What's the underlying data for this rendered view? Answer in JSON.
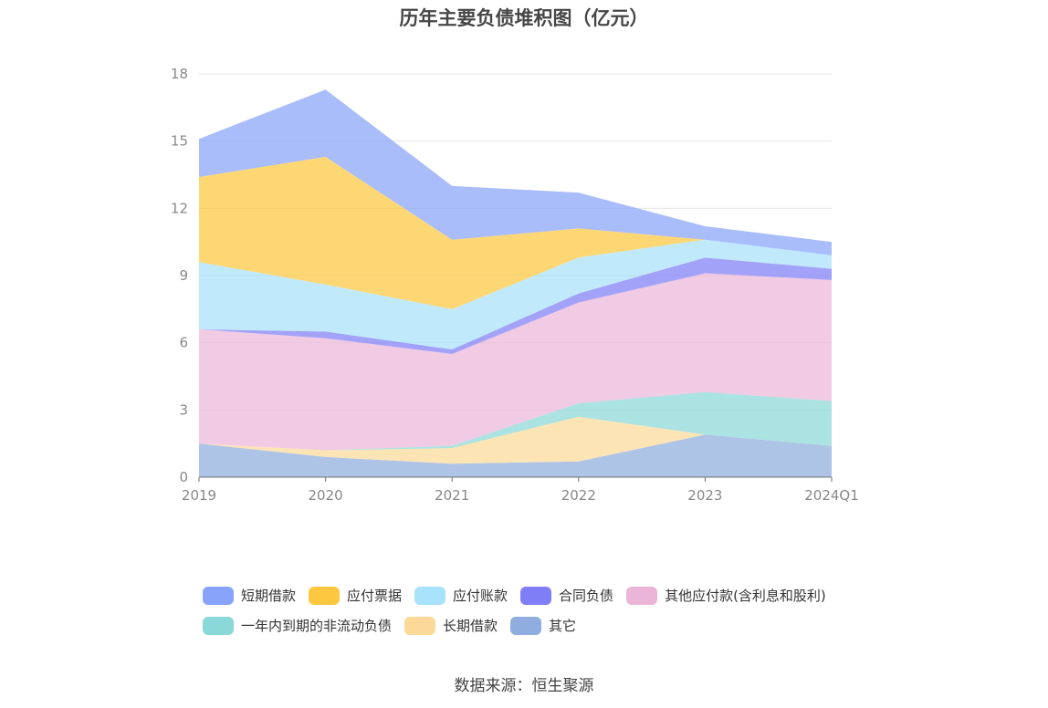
{
  "chart_data": {
    "type": "area",
    "stacked": true,
    "title": "历年主要负债堆积图（亿元）",
    "xlabel": "",
    "ylabel": "",
    "categories": [
      "2019",
      "2020",
      "2021",
      "2022",
      "2023",
      "2024Q1"
    ],
    "ylim": [
      0,
      18
    ],
    "yticks": [
      0,
      3,
      6,
      9,
      12,
      15,
      18
    ],
    "grid": true,
    "legend_position": "bottom",
    "series": [
      {
        "name": "其它",
        "color": "#8fadde",
        "values": [
          1.5,
          0.9,
          0.6,
          0.7,
          1.9,
          1.4
        ]
      },
      {
        "name": "长期借款",
        "color": "#fcd999",
        "values": [
          0.0,
          0.3,
          0.7,
          2.0,
          0.0,
          0.0
        ]
      },
      {
        "name": "一年内到期的非流动负债",
        "color": "#8ad8d7",
        "values": [
          0.0,
          0.0,
          0.1,
          0.6,
          1.9,
          2.0
        ]
      },
      {
        "name": "其他应付款(含利息和股利)",
        "color": "#ebb5d8",
        "values": [
          5.1,
          5.0,
          4.1,
          4.5,
          5.3,
          5.4
        ]
      },
      {
        "name": "合同负债",
        "color": "#7f7ef7",
        "values": [
          0.0,
          0.3,
          0.2,
          0.4,
          0.7,
          0.5
        ]
      },
      {
        "name": "应付账款",
        "color": "#a8e2fb",
        "values": [
          3.0,
          2.1,
          1.8,
          1.6,
          0.8,
          0.6
        ]
      },
      {
        "name": "应付票据",
        "color": "#fdc840",
        "values": [
          3.8,
          5.7,
          3.1,
          1.3,
          0.0,
          0.0
        ]
      },
      {
        "name": "短期借款",
        "color": "#88a4fa",
        "values": [
          1.7,
          3.0,
          2.4,
          1.6,
          0.6,
          0.6
        ]
      }
    ]
  },
  "legend_rows": [
    [
      {
        "label": "短期借款",
        "color": "#88a4fa"
      },
      {
        "label": "应付票据",
        "color": "#fdc840"
      },
      {
        "label": "应付账款",
        "color": "#a8e2fb"
      },
      {
        "label": "合同负债",
        "color": "#7f7ef7"
      },
      {
        "label": "其他应付款(含利息和股利)",
        "color": "#ebb5d8"
      }
    ],
    [
      {
        "label": "一年内到期的非流动负债",
        "color": "#8ad8d7"
      },
      {
        "label": "长期借款",
        "color": "#fcd999"
      },
      {
        "label": "其它",
        "color": "#8fadde"
      }
    ]
  ],
  "source": "数据来源：恒生聚源"
}
